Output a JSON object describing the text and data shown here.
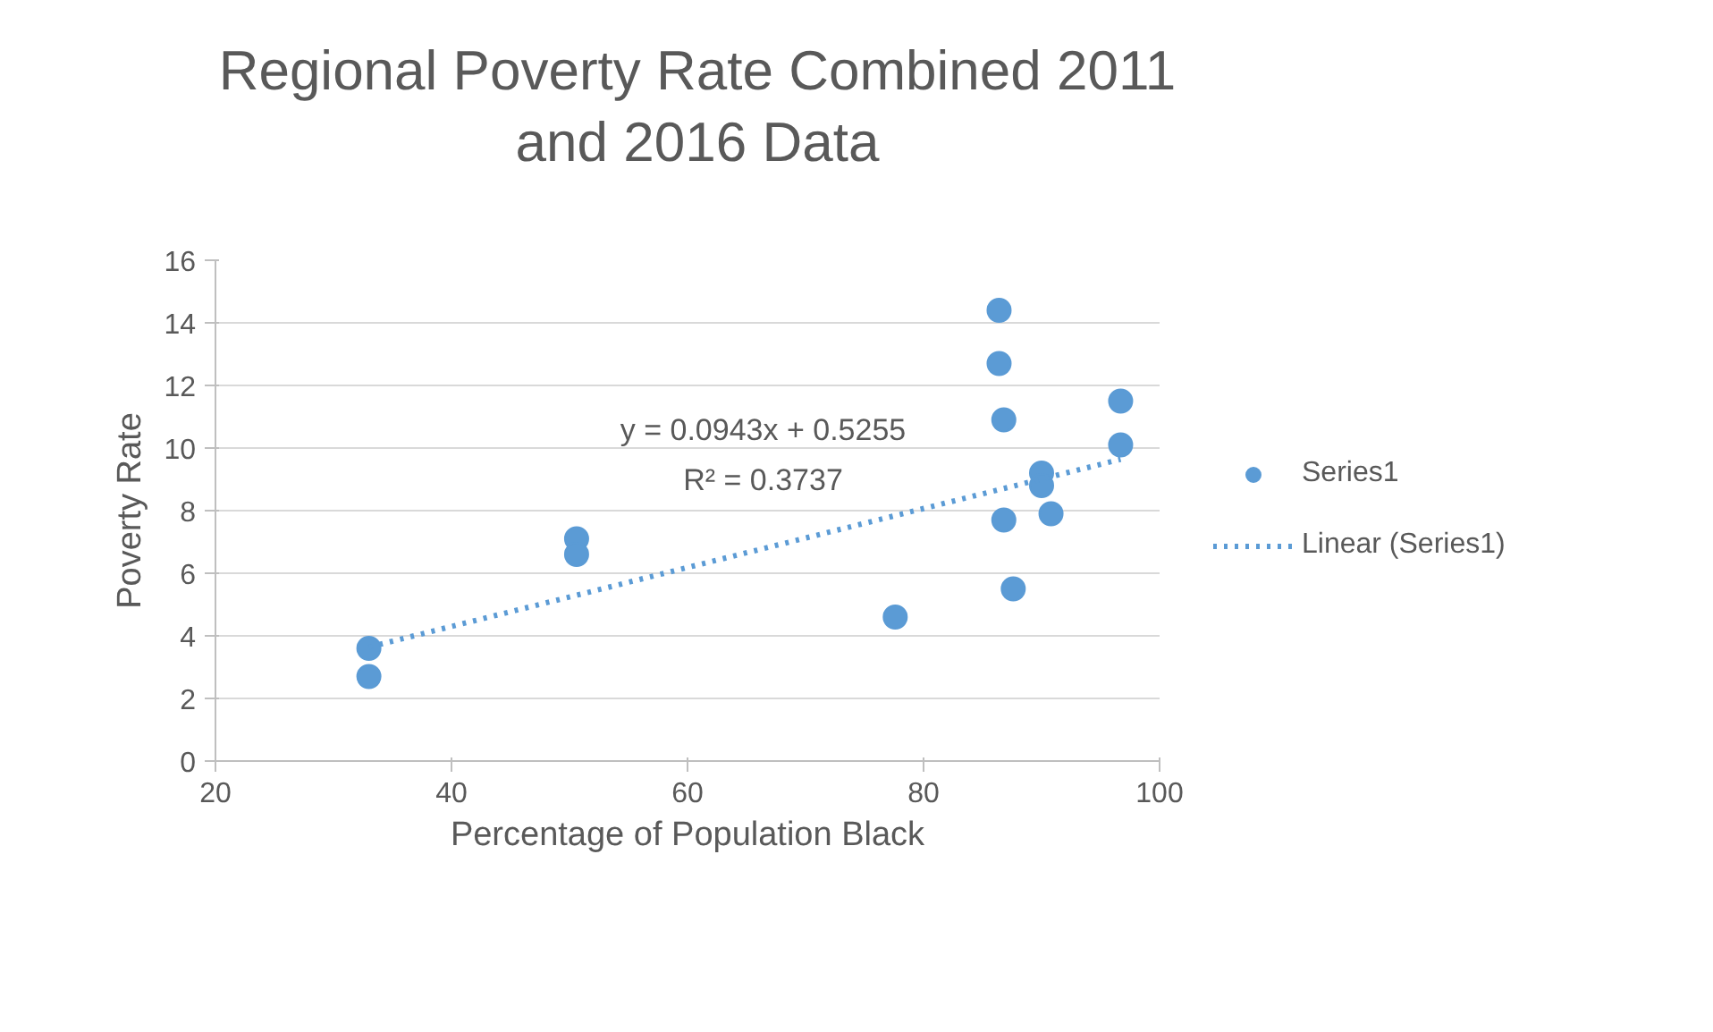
{
  "chart_data": {
    "type": "scatter",
    "title": "Regional Poverty Rate Combined 2011 and 2016 Data",
    "xlabel": "Percentage of Population Black",
    "ylabel": "Poverty Rate",
    "xlim": [
      20,
      100
    ],
    "xticks": [
      20,
      40,
      60,
      80,
      100
    ],
    "ylim": [
      0,
      16
    ],
    "yticks": [
      0,
      2,
      4,
      6,
      8,
      10,
      12,
      14,
      16
    ],
    "grid": "y",
    "legend": "right",
    "marker": "circle",
    "series": [
      {
        "name": "Series1",
        "color": "#5b9bd5",
        "x": [
          33.0,
          33.0,
          50.6,
          50.6,
          77.6,
          86.4,
          86.4,
          86.8,
          86.8,
          87.6,
          90.0,
          90.0,
          90.8,
          96.7,
          96.7
        ],
        "values": [
          3.6,
          2.7,
          7.1,
          6.6,
          4.6,
          14.4,
          12.7,
          10.9,
          7.7,
          5.5,
          9.2,
          8.8,
          7.9,
          11.5,
          10.1
        ]
      },
      {
        "name": "Linear (Series1)",
        "type": "line",
        "line_style": "dotted",
        "marker": "none",
        "color": "#5b9bd5",
        "x": [
          33.0,
          96.7
        ],
        "values": [
          3.64,
          9.64
        ]
      }
    ],
    "annotations": [
      "y = 0.0943x + 0.5255",
      "R² = 0.3737"
    ]
  }
}
